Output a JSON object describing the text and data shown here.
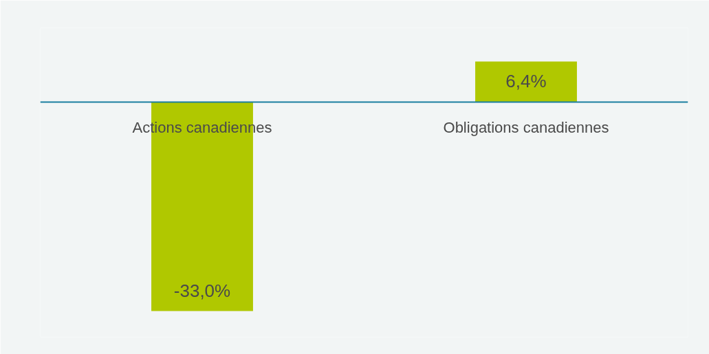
{
  "chart_data": {
    "type": "bar",
    "categories": [
      "Actions canadiennes",
      "Obligations canadiennes"
    ],
    "values": [
      -33.0,
      6.4
    ],
    "color": "#b0c800",
    "value_labels": [
      "-33,0%",
      "6,4%"
    ]
  }
}
